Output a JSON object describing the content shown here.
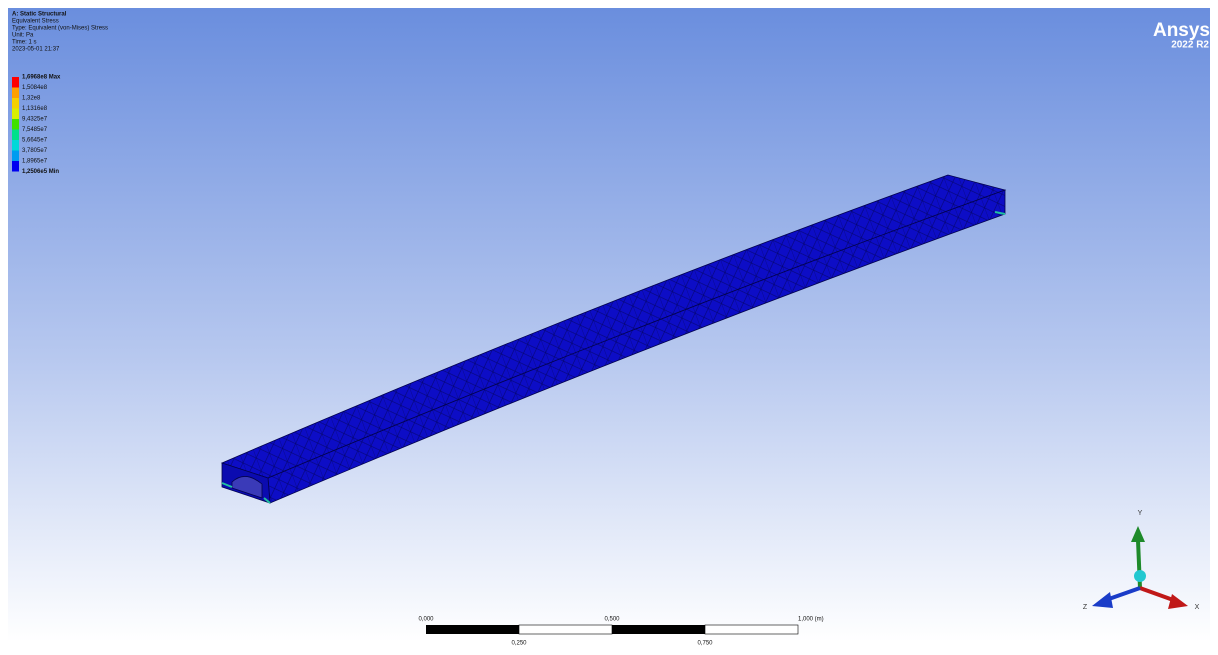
{
  "header": {
    "lines": [
      "A: Static Structural",
      "Equivalent Stress",
      "Type: Equivalent (von-Mises) Stress",
      "Unit: Pa",
      "Time: 1 s",
      "2023-05-01 21:37"
    ]
  },
  "legend": {
    "labels": [
      "1,6968e8 Max",
      "1,5084e8",
      "1,32e8",
      "1,1316e8",
      "9,4325e7",
      "7,5485e7",
      "5,6645e7",
      "3,7805e7",
      "1,8965e7",
      "1,2506e5 Min"
    ]
  },
  "logo": {
    "name": "Ansys",
    "version": "2022 R2"
  },
  "scale_bar": {
    "top_labels": [
      "0,000",
      "0,500",
      "1,000 (m)"
    ],
    "bottom_labels": [
      "0,250",
      "0,750"
    ]
  },
  "triad": {
    "y": "Y",
    "x": "X",
    "z": "Z"
  }
}
